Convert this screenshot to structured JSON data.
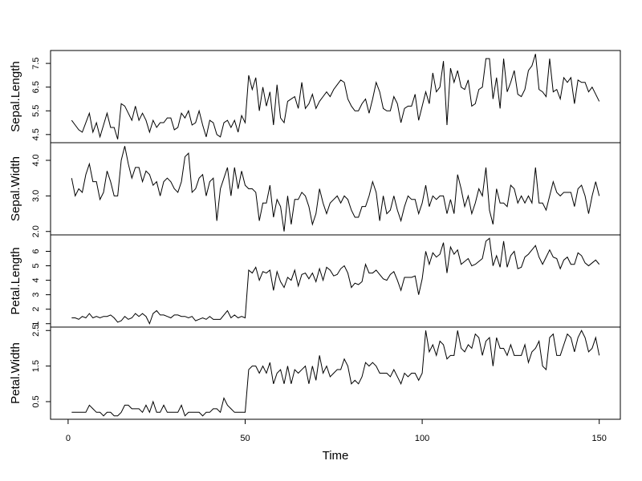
{
  "chart_data": {
    "type": "line",
    "xlabel": "Time",
    "x": [
      1,
      2,
      3,
      4,
      5,
      6,
      7,
      8,
      9,
      10,
      11,
      12,
      13,
      14,
      15,
      16,
      17,
      18,
      19,
      20,
      21,
      22,
      23,
      24,
      25,
      26,
      27,
      28,
      29,
      30,
      31,
      32,
      33,
      34,
      35,
      36,
      37,
      38,
      39,
      40,
      41,
      42,
      43,
      44,
      45,
      46,
      47,
      48,
      49,
      50,
      51,
      52,
      53,
      54,
      55,
      56,
      57,
      58,
      59,
      60,
      61,
      62,
      63,
      64,
      65,
      66,
      67,
      68,
      69,
      70,
      71,
      72,
      73,
      74,
      75,
      76,
      77,
      78,
      79,
      80,
      81,
      82,
      83,
      84,
      85,
      86,
      87,
      88,
      89,
      90,
      91,
      92,
      93,
      94,
      95,
      96,
      97,
      98,
      99,
      100,
      101,
      102,
      103,
      104,
      105,
      106,
      107,
      108,
      109,
      110,
      111,
      112,
      113,
      114,
      115,
      116,
      117,
      118,
      119,
      120,
      121,
      122,
      123,
      124,
      125,
      126,
      127,
      128,
      129,
      130,
      131,
      132,
      133,
      134,
      135,
      136,
      137,
      138,
      139,
      140,
      141,
      142,
      143,
      144,
      145,
      146,
      147,
      148,
      149,
      150
    ],
    "xlim": [
      -4.96,
      155.96
    ],
    "xticks": [
      0,
      50,
      100,
      150
    ],
    "color": "#000000",
    "panels": [
      {
        "ylabel": "Sepal.Length",
        "ylim": [
          4.156,
          8.044
        ],
        "yticks": [
          4.5,
          5.5,
          6.5,
          7.5
        ],
        "values": [
          5.1,
          4.9,
          4.7,
          4.6,
          5.0,
          5.4,
          4.6,
          5.0,
          4.4,
          4.9,
          5.4,
          4.8,
          4.8,
          4.3,
          5.8,
          5.7,
          5.4,
          5.1,
          5.7,
          5.1,
          5.4,
          5.1,
          4.6,
          5.1,
          4.8,
          5.0,
          5.0,
          5.2,
          5.2,
          4.7,
          4.8,
          5.4,
          5.2,
          5.5,
          4.9,
          5.0,
          5.5,
          4.9,
          4.4,
          5.1,
          5.0,
          4.5,
          4.4,
          5.0,
          5.1,
          4.8,
          5.1,
          4.6,
          5.3,
          5.0,
          7.0,
          6.4,
          6.9,
          5.5,
          6.5,
          5.7,
          6.3,
          4.9,
          6.6,
          5.2,
          5.0,
          5.9,
          6.0,
          6.1,
          5.6,
          6.7,
          5.6,
          5.8,
          6.2,
          5.6,
          5.9,
          6.1,
          6.3,
          6.1,
          6.4,
          6.6,
          6.8,
          6.7,
          6.0,
          5.7,
          5.5,
          5.5,
          5.8,
          6.0,
          5.4,
          6.0,
          6.7,
          6.3,
          5.6,
          5.5,
          5.5,
          6.1,
          5.8,
          5.0,
          5.6,
          5.7,
          5.7,
          6.2,
          5.1,
          5.7,
          6.3,
          5.8,
          7.1,
          6.3,
          6.5,
          7.6,
          4.9,
          7.3,
          6.7,
          7.2,
          6.5,
          6.4,
          6.8,
          5.7,
          5.8,
          6.4,
          6.5,
          7.7,
          7.7,
          6.0,
          6.9,
          5.6,
          7.7,
          6.3,
          6.7,
          7.2,
          6.2,
          6.1,
          6.4,
          7.2,
          7.4,
          7.9,
          6.4,
          6.3,
          6.1,
          7.7,
          6.3,
          6.4,
          6.0,
          6.9,
          6.7,
          6.9,
          5.8,
          6.8,
          6.7,
          6.7,
          6.3,
          6.5,
          6.2,
          5.9
        ]
      },
      {
        "ylabel": "Sepal.Width",
        "ylim": [
          1.904,
          4.496
        ],
        "yticks": [
          {
            "value": 2,
            "label": "2.0"
          },
          {
            "value": 3,
            "label": "3.0"
          },
          {
            "value": 4,
            "label": "4.0"
          }
        ],
        "values": [
          3.5,
          3.0,
          3.2,
          3.1,
          3.6,
          3.9,
          3.4,
          3.4,
          2.9,
          3.1,
          3.7,
          3.4,
          3.0,
          3.0,
          4.0,
          4.4,
          3.9,
          3.5,
          3.8,
          3.8,
          3.4,
          3.7,
          3.6,
          3.3,
          3.4,
          3.0,
          3.4,
          3.5,
          3.4,
          3.2,
          3.1,
          3.4,
          4.1,
          4.2,
          3.1,
          3.2,
          3.5,
          3.6,
          3.0,
          3.4,
          3.5,
          2.3,
          3.2,
          3.5,
          3.8,
          3.0,
          3.8,
          3.2,
          3.7,
          3.3,
          3.2,
          3.2,
          3.1,
          2.3,
          2.8,
          2.8,
          3.3,
          2.4,
          2.9,
          2.7,
          2.0,
          3.0,
          2.2,
          2.9,
          2.9,
          3.1,
          3.0,
          2.7,
          2.2,
          2.5,
          3.2,
          2.8,
          2.5,
          2.8,
          2.9,
          3.0,
          2.8,
          3.0,
          2.9,
          2.6,
          2.4,
          2.4,
          2.7,
          2.7,
          3.0,
          3.4,
          3.1,
          2.3,
          3.0,
          2.5,
          2.6,
          3.0,
          2.6,
          2.3,
          2.7,
          3.0,
          2.9,
          2.9,
          2.5,
          2.8,
          3.3,
          2.7,
          3.0,
          2.9,
          3.0,
          3.0,
          2.5,
          2.9,
          2.5,
          3.6,
          3.2,
          2.7,
          3.0,
          2.5,
          2.8,
          3.2,
          3.0,
          3.8,
          2.6,
          2.2,
          3.2,
          2.8,
          2.8,
          2.7,
          3.3,
          3.2,
          2.8,
          3.0,
          2.8,
          3.0,
          2.8,
          3.8,
          2.8,
          2.8,
          2.6,
          3.0,
          3.4,
          3.1,
          3.0,
          3.1,
          3.1,
          3.1,
          2.7,
          3.2,
          3.3,
          3.0,
          2.5,
          3.0,
          3.4,
          3.0
        ]
      },
      {
        "ylabel": "Petal.Length",
        "ylim": [
          0.764,
          7.136
        ],
        "yticks": [
          1,
          2,
          3,
          4,
          5,
          6
        ],
        "values": [
          1.4,
          1.4,
          1.3,
          1.5,
          1.4,
          1.7,
          1.4,
          1.5,
          1.4,
          1.5,
          1.5,
          1.6,
          1.4,
          1.1,
          1.2,
          1.5,
          1.3,
          1.4,
          1.7,
          1.5,
          1.7,
          1.5,
          1.0,
          1.7,
          1.9,
          1.6,
          1.6,
          1.5,
          1.4,
          1.6,
          1.6,
          1.5,
          1.5,
          1.4,
          1.5,
          1.2,
          1.3,
          1.4,
          1.3,
          1.5,
          1.3,
          1.3,
          1.3,
          1.6,
          1.9,
          1.4,
          1.6,
          1.4,
          1.5,
          1.4,
          4.7,
          4.5,
          4.9,
          4.0,
          4.6,
          4.5,
          4.7,
          3.3,
          4.6,
          3.9,
          3.5,
          4.2,
          4.0,
          4.7,
          3.6,
          4.4,
          4.5,
          4.1,
          4.5,
          3.9,
          4.8,
          4.0,
          4.9,
          4.7,
          4.3,
          4.4,
          4.8,
          5.0,
          4.5,
          3.5,
          3.8,
          3.7,
          3.9,
          5.1,
          4.5,
          4.5,
          4.7,
          4.4,
          4.1,
          4.0,
          4.4,
          4.6,
          4.0,
          3.3,
          4.2,
          4.2,
          4.2,
          4.3,
          3.0,
          4.1,
          6.0,
          5.1,
          5.9,
          5.6,
          5.8,
          6.6,
          4.5,
          6.3,
          5.8,
          6.1,
          5.1,
          5.3,
          5.5,
          5.0,
          5.1,
          5.3,
          5.5,
          6.7,
          6.9,
          5.0,
          5.7,
          4.9,
          6.7,
          4.9,
          5.7,
          6.0,
          4.8,
          4.9,
          5.6,
          5.8,
          6.1,
          6.4,
          5.6,
          5.1,
          5.6,
          6.1,
          5.6,
          5.5,
          4.8,
          5.4,
          5.6,
          5.1,
          5.1,
          5.9,
          5.7,
          5.2,
          5.0,
          5.2,
          5.4,
          5.1
        ]
      },
      {
        "ylabel": "Petal.Width",
        "ylim": [
          0.004,
          2.596
        ],
        "yticks": [
          0.5,
          1.5,
          2.5
        ],
        "values": [
          0.2,
          0.2,
          0.2,
          0.2,
          0.2,
          0.4,
          0.3,
          0.2,
          0.2,
          0.1,
          0.2,
          0.2,
          0.1,
          0.1,
          0.2,
          0.4,
          0.4,
          0.3,
          0.3,
          0.3,
          0.2,
          0.4,
          0.2,
          0.5,
          0.2,
          0.2,
          0.4,
          0.2,
          0.2,
          0.2,
          0.2,
          0.4,
          0.1,
          0.2,
          0.2,
          0.2,
          0.2,
          0.1,
          0.2,
          0.2,
          0.3,
          0.3,
          0.2,
          0.6,
          0.4,
          0.3,
          0.2,
          0.2,
          0.2,
          0.2,
          1.4,
          1.5,
          1.5,
          1.3,
          1.5,
          1.3,
          1.6,
          1.0,
          1.3,
          1.4,
          1.0,
          1.5,
          1.0,
          1.4,
          1.3,
          1.4,
          1.5,
          1.0,
          1.5,
          1.1,
          1.8,
          1.3,
          1.5,
          1.2,
          1.3,
          1.4,
          1.4,
          1.7,
          1.5,
          1.0,
          1.1,
          1.0,
          1.2,
          1.6,
          1.5,
          1.6,
          1.5,
          1.3,
          1.3,
          1.3,
          1.2,
          1.4,
          1.2,
          1.0,
          1.3,
          1.2,
          1.3,
          1.3,
          1.1,
          1.3,
          2.5,
          1.9,
          2.1,
          1.8,
          2.2,
          2.1,
          1.7,
          1.8,
          1.8,
          2.5,
          2.0,
          1.9,
          2.1,
          2.0,
          2.4,
          2.3,
          1.8,
          2.2,
          2.3,
          1.5,
          2.3,
          2.0,
          2.0,
          1.8,
          2.1,
          1.8,
          1.8,
          1.8,
          2.1,
          1.6,
          1.9,
          2.0,
          2.2,
          1.5,
          1.4,
          2.3,
          2.4,
          1.8,
          1.8,
          2.1,
          2.4,
          2.3,
          1.9,
          2.3,
          2.5,
          2.3,
          1.9,
          2.0,
          2.3,
          1.8
        ]
      }
    ]
  }
}
